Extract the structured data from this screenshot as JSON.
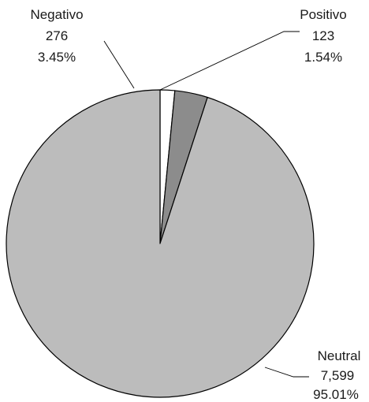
{
  "chart_data": {
    "type": "pie",
    "slices": [
      {
        "label": "Positivo",
        "value": 123,
        "value_text": "123",
        "percent_text": "1.54%",
        "color": "#ffffff"
      },
      {
        "label": "Negativo",
        "value": 276,
        "value_text": "276",
        "percent_text": "3.45%",
        "color": "#8c8c8c"
      },
      {
        "label": "Neutral",
        "value": 7599,
        "value_text": "7,599",
        "percent_text": "95.01%",
        "color": "#bcbcbc"
      }
    ],
    "start_angle_deg": 0,
    "direction": "clockwise",
    "legend": "none"
  }
}
